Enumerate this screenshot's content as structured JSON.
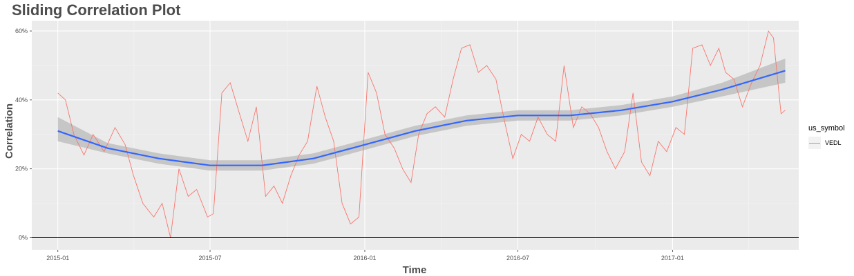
{
  "chart_data": {
    "type": "line",
    "title": "Sliding Correlation Plot",
    "xlabel": "Time",
    "ylabel": "Correlation",
    "x_ticks": [
      "2015-01",
      "2015-07",
      "2016-01",
      "2016-07",
      "2017-01"
    ],
    "y_ticks": [
      "0%",
      "20%",
      "40%",
      "60%"
    ],
    "xlim": [
      "2014-12-01",
      "2017-05-31"
    ],
    "ylim": [
      -0.035,
      0.63
    ],
    "grid": true,
    "legend": {
      "title": "us_symbol",
      "position": "right",
      "entries": [
        "VEDL"
      ]
    },
    "colors": {
      "series": "#f8766d",
      "smooth": "#3366ff",
      "band": "#bfbfbf",
      "panel": "#ebebeb"
    },
    "series": [
      {
        "name": "VEDL",
        "x": [
          "2015-01-01",
          "2015-01-10",
          "2015-01-20",
          "2015-02-01",
          "2015-02-12",
          "2015-02-25",
          "2015-03-10",
          "2015-03-22",
          "2015-04-01",
          "2015-04-12",
          "2015-04-25",
          "2015-05-05",
          "2015-05-15",
          "2015-05-25",
          "2015-06-05",
          "2015-06-15",
          "2015-06-28",
          "2015-07-05",
          "2015-07-15",
          "2015-07-25",
          "2015-08-05",
          "2015-08-15",
          "2015-08-25",
          "2015-09-05",
          "2015-09-15",
          "2015-09-25",
          "2015-10-05",
          "2015-10-15",
          "2015-10-25",
          "2015-11-05",
          "2015-11-15",
          "2015-11-25",
          "2015-12-05",
          "2015-12-15",
          "2015-12-25",
          "2016-01-05",
          "2016-01-15",
          "2016-01-25",
          "2016-02-05",
          "2016-02-15",
          "2016-02-25",
          "2016-03-05",
          "2016-03-15",
          "2016-03-25",
          "2016-04-05",
          "2016-04-15",
          "2016-04-25",
          "2016-05-05",
          "2016-05-15",
          "2016-05-25",
          "2016-06-05",
          "2016-06-15",
          "2016-06-25",
          "2016-07-05",
          "2016-07-15",
          "2016-07-25",
          "2016-08-05",
          "2016-08-15",
          "2016-08-25",
          "2016-09-05",
          "2016-09-15",
          "2016-09-25",
          "2016-10-05",
          "2016-10-15",
          "2016-10-25",
          "2016-11-05",
          "2016-11-15",
          "2016-11-25",
          "2016-12-05",
          "2016-12-15",
          "2016-12-25",
          "2017-01-05",
          "2017-01-15",
          "2017-01-25",
          "2017-02-05",
          "2017-02-15",
          "2017-02-25",
          "2017-03-05",
          "2017-03-15",
          "2017-03-25",
          "2017-04-05",
          "2017-04-15",
          "2017-04-25",
          "2017-05-01",
          "2017-05-05",
          "2017-05-10",
          "2017-05-15"
        ],
        "y": [
          0.42,
          0.4,
          0.3,
          0.24,
          0.3,
          0.25,
          0.32,
          0.27,
          0.18,
          0.1,
          0.06,
          0.1,
          0.0,
          0.2,
          0.12,
          0.14,
          0.06,
          0.07,
          0.42,
          0.45,
          0.36,
          0.28,
          0.38,
          0.12,
          0.15,
          0.1,
          0.18,
          0.24,
          0.28,
          0.44,
          0.35,
          0.28,
          0.1,
          0.04,
          0.06,
          0.48,
          0.42,
          0.3,
          0.26,
          0.2,
          0.16,
          0.3,
          0.36,
          0.38,
          0.35,
          0.46,
          0.55,
          0.56,
          0.48,
          0.5,
          0.46,
          0.34,
          0.23,
          0.3,
          0.28,
          0.35,
          0.3,
          0.28,
          0.5,
          0.32,
          0.38,
          0.36,
          0.32,
          0.25,
          0.2,
          0.25,
          0.42,
          0.22,
          0.18,
          0.28,
          0.25,
          0.32,
          0.3,
          0.55,
          0.56,
          0.5,
          0.55,
          0.48,
          0.46,
          0.38,
          0.45,
          0.5,
          0.6,
          0.58,
          0.48,
          0.36,
          0.37
        ]
      }
    ],
    "smooth": {
      "x": [
        "2015-01-01",
        "2015-03-01",
        "2015-05-01",
        "2015-07-01",
        "2015-09-01",
        "2015-11-01",
        "2016-01-01",
        "2016-03-01",
        "2016-05-01",
        "2016-07-01",
        "2016-09-01",
        "2016-11-01",
        "2017-01-01",
        "2017-03-01",
        "2017-05-15"
      ],
      "y": [
        0.31,
        0.26,
        0.23,
        0.21,
        0.21,
        0.23,
        0.27,
        0.31,
        0.34,
        0.355,
        0.355,
        0.37,
        0.395,
        0.43,
        0.485
      ],
      "lower": [
        0.28,
        0.245,
        0.215,
        0.195,
        0.195,
        0.215,
        0.255,
        0.295,
        0.325,
        0.34,
        0.34,
        0.355,
        0.38,
        0.41,
        0.45
      ],
      "upper": [
        0.35,
        0.275,
        0.245,
        0.225,
        0.225,
        0.245,
        0.285,
        0.325,
        0.355,
        0.37,
        0.37,
        0.385,
        0.41,
        0.45,
        0.52
      ]
    }
  }
}
